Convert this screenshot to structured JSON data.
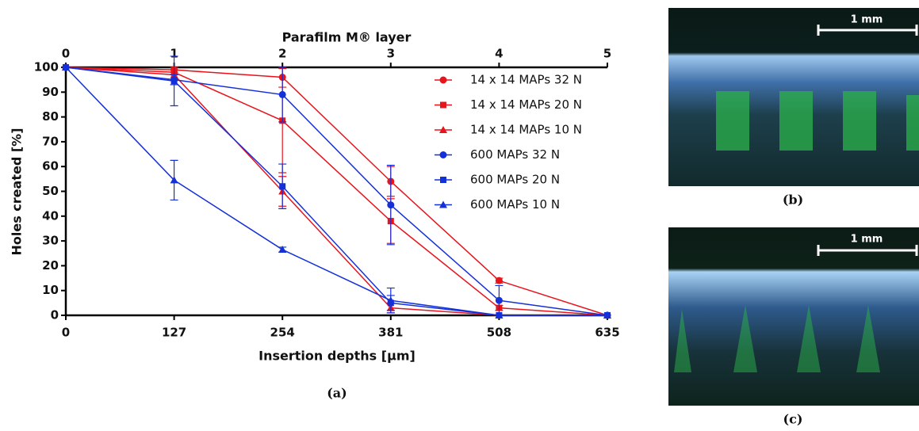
{
  "chart_data": {
    "type": "line",
    "panel_label": "(a)",
    "x_label": "Insertion depths [μm]",
    "y_label": "Holes created [%]",
    "x2_label": "Parafilm M® layer",
    "x": [
      0,
      127,
      254,
      381,
      508,
      635
    ],
    "xlim": [
      0,
      635
    ],
    "xticks": [
      0,
      127,
      254,
      381,
      508,
      635
    ],
    "x2lim": [
      0,
      5
    ],
    "x2ticks": [
      0,
      1,
      2,
      3,
      4,
      5
    ],
    "ylim": [
      0,
      100
    ],
    "yticks": [
      0,
      10,
      20,
      30,
      40,
      50,
      60,
      70,
      80,
      90,
      100
    ],
    "legend": "upper right",
    "series": [
      {
        "name": "14 x 14 MAPs 32 N",
        "color": "#e8141c",
        "marker": "circle",
        "values": [
          100,
          99,
          96,
          54,
          14,
          0
        ],
        "errors": [
          0,
          1,
          4,
          6,
          1,
          0
        ]
      },
      {
        "name": "14 x 14 MAPs 20 N",
        "color": "#e8141c",
        "marker": "square",
        "values": [
          100,
          98,
          78.5,
          38,
          3,
          0
        ],
        "errors": [
          0,
          1,
          21,
          9,
          1,
          0
        ]
      },
      {
        "name": "14 x 14 MAPs 10 N",
        "color": "#e8141c",
        "marker": "triangle",
        "values": [
          100,
          97,
          50,
          3,
          0,
          0
        ],
        "errors": [
          0,
          2,
          6,
          2,
          0,
          0
        ]
      },
      {
        "name": "600 MAPs 32 N",
        "color": "#1430d8",
        "marker": "circle",
        "values": [
          100,
          95,
          89,
          44.5,
          6,
          0
        ],
        "errors": [
          0,
          2,
          11,
          16,
          6,
          0
        ]
      },
      {
        "name": "600 MAPs 20 N",
        "color": "#1430d8",
        "marker": "square",
        "values": [
          100,
          94.5,
          52,
          5,
          0,
          0
        ],
        "errors": [
          0,
          10,
          9,
          3,
          0,
          0
        ]
      },
      {
        "name": "600 MAPs 10 N",
        "color": "#1430d8",
        "marker": "triangle",
        "values": [
          100,
          54.5,
          26.5,
          6,
          0,
          0
        ],
        "errors": [
          0,
          8,
          1,
          5,
          0,
          0
        ]
      }
    ]
  },
  "panels": [
    {
      "label": "(b)",
      "scale_bar": "1 mm"
    },
    {
      "label": "(c)",
      "scale_bar": "1 mm"
    }
  ]
}
